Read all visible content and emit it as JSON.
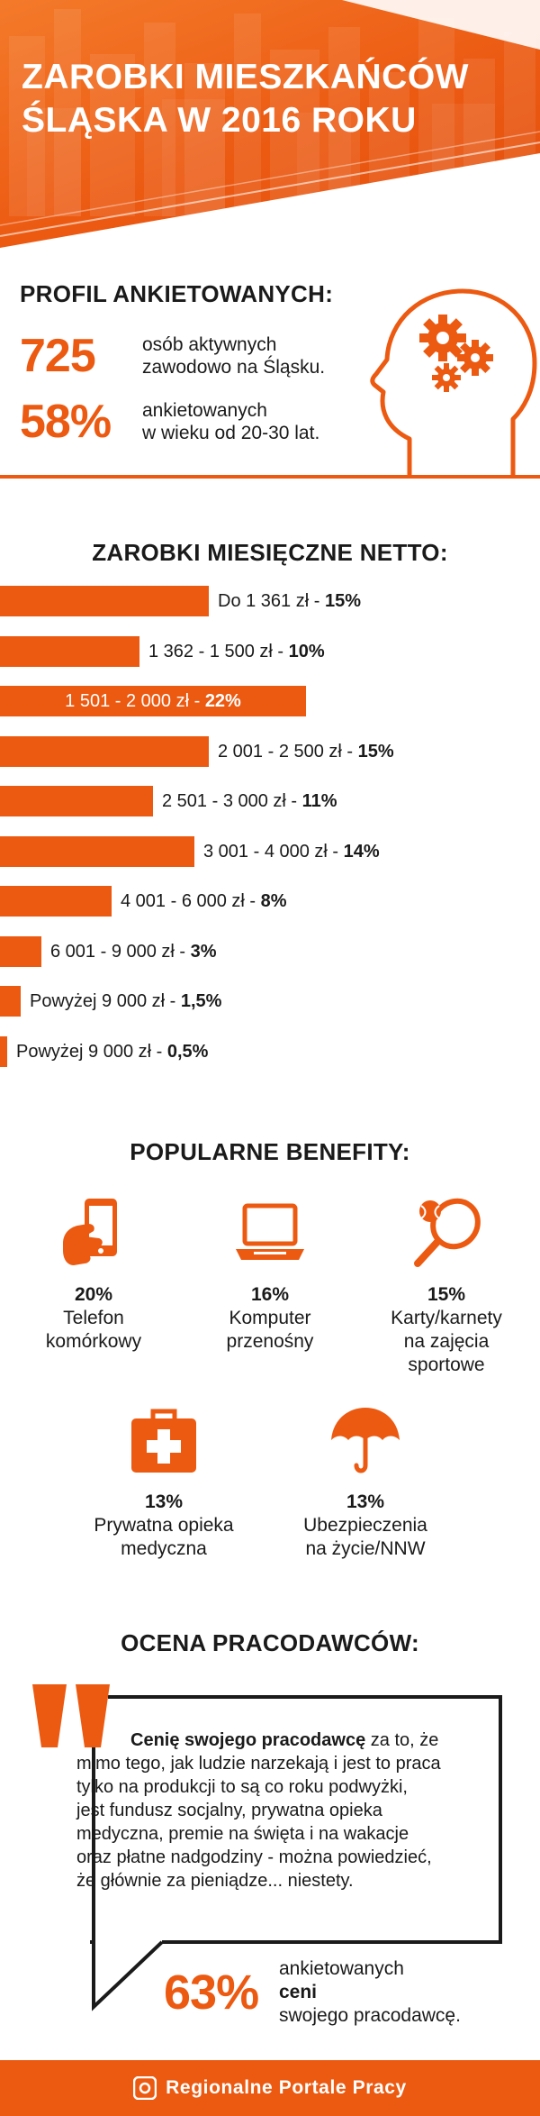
{
  "header": {
    "title_line1": "ZAROBKI MIESZKAŃCÓW",
    "title_line2": "ŚLĄSKA W 2016 ROKU"
  },
  "profil": {
    "heading": "PROFIL ANKIETOWANYCH:",
    "stats": [
      {
        "number": "725",
        "line1": "osób aktywnych",
        "line2": "zawodowo na Śląsku."
      },
      {
        "number": "58%",
        "line1": "ankietowanych",
        "line2": "w wieku od 20-30 lat."
      }
    ],
    "icon": "head-with-gears-icon"
  },
  "zarobki": {
    "heading": "ZAROBKI MIESIĘCZNE NETTO:"
  },
  "chart_data": {
    "type": "bar",
    "orientation": "horizontal",
    "title": "ZAROBKI MIESIĘCZNE NETTO:",
    "categories": [
      "Do 1 361 zł",
      "1 362 - 1 500 zł",
      "1 501 - 2 000 zł",
      "2 001 - 2 500 zł",
      "2 501 - 3 000 zł",
      "3 001 - 4 000 zł",
      "4 001 - 6 000 zł",
      "6 001 - 9 000 zł",
      "Powyżej 9 000 zł",
      "Powyżej 9 000 zł"
    ],
    "values": [
      15,
      10,
      22,
      15,
      11,
      14,
      8,
      3,
      1.5,
      0.5
    ],
    "value_labels": [
      "15%",
      "10%",
      "22%",
      "15%",
      "11%",
      "14%",
      "8%",
      "3%",
      "1,5%",
      "0,5%"
    ],
    "highlighted_index": 2,
    "bar_color": "#ec5a12",
    "grid": false
  },
  "benefity": {
    "heading": "POPULARNE BENEFITY:",
    "items": [
      {
        "pct": "20%",
        "line1": "Telefon",
        "line2": "komórkowy",
        "line3": "",
        "icon": "phone-in-hand-icon"
      },
      {
        "pct": "16%",
        "line1": "Komputer",
        "line2": "przenośny",
        "line3": "",
        "icon": "laptop-icon"
      },
      {
        "pct": "15%",
        "line1": "Karty/karnety",
        "line2": "na zajęcia",
        "line3": "sportowe",
        "icon": "tennis-racket-icon"
      },
      {
        "pct": "13%",
        "line1": "Prywatna opieka",
        "line2": "medyczna",
        "line3": "",
        "icon": "medical-kit-icon"
      },
      {
        "pct": "13%",
        "line1": "Ubezpieczenia",
        "line2": "na życie/NNW",
        "line3": "",
        "icon": "umbrella-icon"
      }
    ]
  },
  "ocena": {
    "heading": "OCENA PRACODAWCÓW:",
    "quote_bold": "Cenię swojego pracodawcę",
    "quote_line1_rest": " za to, że",
    "quote_lines": [
      "mimo tego, jak ludzie narzekają i jest to praca",
      "tylko na produkcji to są co roku podwyżki,",
      "jest fundusz socjalny, prywatna opieka",
      "medyczna, premie na święta i na wakacje",
      "oraz płatne nadgodziny - można powiedzieć,",
      "że głównie za pieniądze... niestety."
    ],
    "stat_number": "63%",
    "stat_line1_a": "ankietowanych ",
    "stat_line1_b": "ceni",
    "stat_line2": "swojego pracodawcę."
  },
  "footer": {
    "brand": "Regionalne Portale Pracy",
    "icon": "rpp-logo-icon"
  },
  "colors": {
    "accent": "#ec5a12",
    "text": "#1a1a1a",
    "background": "#ffffff"
  }
}
